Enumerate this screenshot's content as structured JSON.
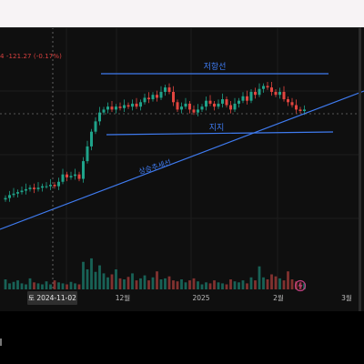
{
  "header": {
    "price_change": "4  -121.27 (-0.17%)"
  },
  "crosshair": {
    "date_label": "토 2024-11-02"
  },
  "annotations": {
    "resistance": "저항선",
    "support": "지지",
    "uptrend": "상승추세선"
  },
  "colors": {
    "background": "#0f0f0f",
    "up_candle": "#1fa38a",
    "down_candle": "#e2453f",
    "trendline": "#3f7bf0",
    "grid": "#1c1c1c"
  },
  "icons": {
    "alert": "lightning-bolt-icon"
  },
  "chart_data": {
    "type": "candlestick",
    "title": "",
    "xlabel": "",
    "ylabel": "",
    "x_tick_labels": [
      "12월",
      "2025",
      "2월",
      "3월"
    ],
    "grid": true,
    "crosshair_date": "2024-11-02",
    "price_scale_visible": false,
    "trendlines": [
      {
        "name": "저항선",
        "kind": "horizontal"
      },
      {
        "name": "지지",
        "kind": "horizontal"
      },
      {
        "name": "상승추세선",
        "kind": "diagonal"
      }
    ],
    "series": [
      {
        "name": "price",
        "values": [
          20,
          22,
          23,
          24,
          25,
          26,
          27,
          26,
          27,
          28,
          28,
          29,
          28,
          31,
          36,
          34,
          35,
          36,
          33,
          45,
          55,
          65,
          72,
          78,
          80,
          82,
          80,
          82,
          81,
          83,
          82,
          84,
          82,
          85,
          88,
          87,
          90,
          88,
          92,
          95,
          92,
          85,
          80,
          82,
          84,
          80,
          78,
          80,
          82,
          86,
          84,
          82,
          84,
          87,
          83,
          80,
          84,
          86,
          89,
          86,
          92,
          90,
          94,
          96,
          95,
          92,
          90,
          92,
          87,
          85,
          83,
          80,
          79,
          80
        ]
      },
      {
        "name": "volume",
        "values": [
          20,
          12,
          15,
          18,
          12,
          10,
          22,
          14,
          12,
          10,
          16,
          10,
          18,
          14,
          12,
          10,
          15,
          12,
          10,
          55,
          40,
          62,
          35,
          48,
          32,
          24,
          30,
          40,
          22,
          20,
          25,
          32,
          18,
          22,
          28,
          18,
          24,
          36,
          20,
          22,
          26,
          18,
          16,
          20,
          14,
          18,
          22,
          16,
          10,
          14,
          12,
          18,
          14,
          12,
          10,
          20,
          16,
          14,
          18,
          12,
          24,
          18,
          46,
          24,
          20,
          30,
          26,
          22,
          18,
          36,
          20,
          16,
          14,
          12
        ]
      }
    ]
  }
}
